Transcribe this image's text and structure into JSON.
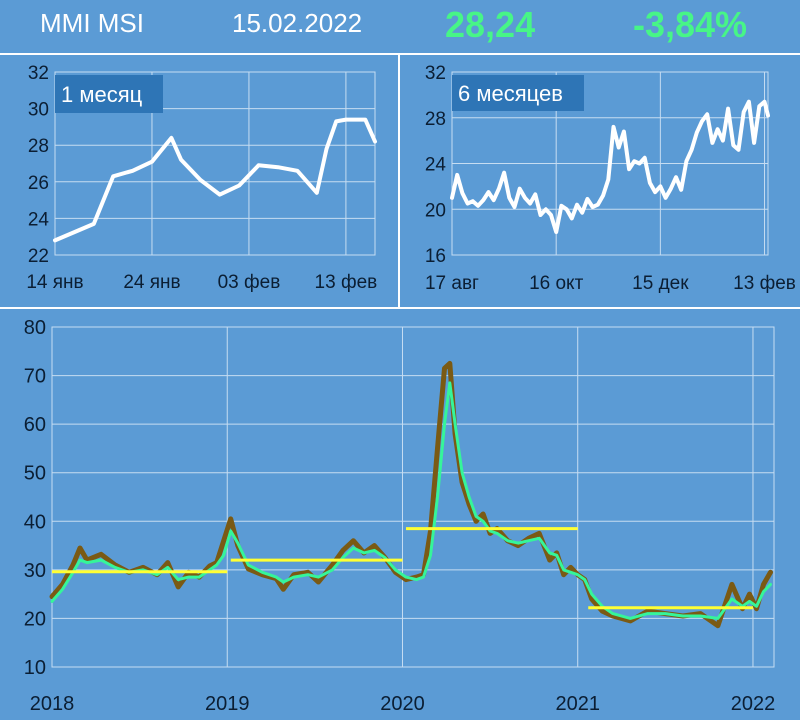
{
  "header": {
    "index_name": "MMI MSI",
    "date": "15.02.2022",
    "value": "28,24",
    "change": "-3,84%",
    "value_color": "#47f587",
    "text_color": "#ffffff"
  },
  "colors": {
    "background": "#5b9bd5",
    "grid": "#c6ddf2",
    "tick_text": "#0b1e33",
    "small_chart_line": "#ffffff",
    "badge_fill": "#2e75b6",
    "main_raw_line": "#7a5a14",
    "main_smooth_line": "#35f59a",
    "level_line": "#ffff33"
  },
  "chart_data": [
    {
      "type": "line",
      "label": "1 месяц",
      "ylim": [
        22,
        32
      ],
      "yticks": [
        "22",
        "24",
        "26",
        "28",
        "30",
        "32"
      ],
      "xticks": [
        "14 янв",
        "24 янв",
        "03 фев",
        "13 фев"
      ],
      "xlim": [
        0,
        33
      ],
      "xtick_positions": [
        0,
        10,
        20,
        30
      ],
      "x": [
        0,
        4,
        6,
        8,
        10,
        12,
        13,
        15,
        17,
        19,
        21,
        23,
        25,
        27,
        28,
        29,
        30,
        32,
        33
      ],
      "values": [
        22.8,
        23.7,
        26.3,
        26.6,
        27.1,
        28.4,
        27.2,
        26.1,
        25.3,
        25.8,
        26.9,
        26.8,
        26.6,
        25.4,
        27.8,
        29.3,
        29.4,
        29.4,
        28.2
      ]
    },
    {
      "type": "line",
      "label": "6 месяцев",
      "ylim": [
        16,
        32
      ],
      "yticks": [
        "16",
        "20",
        "24",
        "28",
        "32"
      ],
      "xticks": [
        "17 авг",
        "16 окт",
        "15 дек",
        "13 фев"
      ],
      "xlim": [
        0,
        182
      ],
      "xtick_positions": [
        0,
        60,
        120,
        180
      ],
      "x": [
        0,
        3,
        6,
        9,
        12,
        15,
        18,
        21,
        24,
        27,
        30,
        33,
        36,
        39,
        42,
        45,
        48,
        51,
        54,
        57,
        60,
        63,
        66,
        69,
        72,
        75,
        78,
        81,
        84,
        87,
        90,
        93,
        96,
        99,
        102,
        105,
        108,
        111,
        114,
        117,
        120,
        123,
        126,
        129,
        132,
        135,
        138,
        141,
        144,
        147,
        150,
        153,
        156,
        159,
        162,
        165,
        168,
        171,
        174,
        177,
        180,
        182
      ],
      "values": [
        21.0,
        23.0,
        21.4,
        20.5,
        20.7,
        20.3,
        20.8,
        21.5,
        20.8,
        21.8,
        23.2,
        21.0,
        20.2,
        21.8,
        21.0,
        20.5,
        21.3,
        19.5,
        20.0,
        19.5,
        18.0,
        20.3,
        20.0,
        19.2,
        20.4,
        19.7,
        20.9,
        20.2,
        20.4,
        21.2,
        22.6,
        27.2,
        25.4,
        26.8,
        23.5,
        24.2,
        24.0,
        24.5,
        22.3,
        21.5,
        22.0,
        21.0,
        21.8,
        22.8,
        21.7,
        24.2,
        25.2,
        26.7,
        27.7,
        28.3,
        25.8,
        27.0,
        26.0,
        28.8,
        25.6,
        25.2,
        28.5,
        29.4,
        25.8,
        29.0,
        29.4,
        28.2
      ]
    },
    {
      "type": "line",
      "ylim": [
        10,
        80
      ],
      "yticks": [
        "10",
        "20",
        "30",
        "40",
        "50",
        "60",
        "70",
        "80"
      ],
      "xticks": [
        "2018",
        "2019",
        "2020",
        "2021",
        "2022"
      ],
      "xlim": [
        2018,
        2022.12
      ],
      "xtick_positions": [
        2018,
        2019,
        2020,
        2021,
        2022
      ],
      "series": [
        {
          "x": [
            2018.0,
            2018.06,
            2018.12,
            2018.16,
            2018.2,
            2018.28,
            2018.36,
            2018.44,
            2018.52,
            2018.6,
            2018.66,
            2018.72,
            2018.78,
            2018.84,
            2018.9,
            2018.94,
            2018.98,
            2019.02,
            2019.06,
            2019.12,
            2019.2,
            2019.28,
            2019.32,
            2019.38,
            2019.46,
            2019.52,
            2019.6,
            2019.66,
            2019.72,
            2019.78,
            2019.84,
            2019.9,
            2019.96,
            2020.02,
            2020.08,
            2020.12,
            2020.16,
            2020.2,
            2020.24,
            2020.27,
            2020.3,
            2020.34,
            2020.38,
            2020.42,
            2020.46,
            2020.5,
            2020.54,
            2020.6,
            2020.66,
            2020.72,
            2020.78,
            2020.84,
            2020.88,
            2020.92,
            2020.96,
            2021.0,
            2021.04,
            2021.08,
            2021.14,
            2021.2,
            2021.3,
            2021.4,
            2021.5,
            2021.6,
            2021.7,
            2021.8,
            2021.88,
            2021.94,
            2021.98,
            2022.02,
            2022.06,
            2022.1
          ],
          "values": [
            24.5,
            27.0,
            31.0,
            34.5,
            32.0,
            33.2,
            31.0,
            29.5,
            30.5,
            29.0,
            31.5,
            26.5,
            29.5,
            28.5,
            30.8,
            31.5,
            36.0,
            40.5,
            35.0,
            30.2,
            29.0,
            28.2,
            26.0,
            29.0,
            29.5,
            27.5,
            31.0,
            34.0,
            36.0,
            33.5,
            35.0,
            32.5,
            29.5,
            28.0,
            28.5,
            29.0,
            38.0,
            55.0,
            71.5,
            72.5,
            58.0,
            48.0,
            43.5,
            40.0,
            41.5,
            37.5,
            38.5,
            36.0,
            35.0,
            36.5,
            37.5,
            32.0,
            33.5,
            29.0,
            30.5,
            29.0,
            28.0,
            24.0,
            21.5,
            20.5,
            19.5,
            21.5,
            21.0,
            20.5,
            21.0,
            18.5,
            27.0,
            22.0,
            25.0,
            22.0,
            27.0,
            29.5
          ],
          "color": "#7a5a14"
        },
        {
          "x": [
            2018.0,
            2018.06,
            2018.12,
            2018.16,
            2018.2,
            2018.28,
            2018.36,
            2018.44,
            2018.52,
            2018.6,
            2018.66,
            2018.72,
            2018.78,
            2018.84,
            2018.9,
            2018.94,
            2018.98,
            2019.02,
            2019.06,
            2019.12,
            2019.2,
            2019.28,
            2019.32,
            2019.38,
            2019.46,
            2019.52,
            2019.6,
            2019.66,
            2019.72,
            2019.78,
            2019.84,
            2019.9,
            2019.96,
            2020.02,
            2020.08,
            2020.12,
            2020.16,
            2020.2,
            2020.24,
            2020.27,
            2020.3,
            2020.34,
            2020.38,
            2020.42,
            2020.46,
            2020.5,
            2020.54,
            2020.6,
            2020.66,
            2020.72,
            2020.78,
            2020.84,
            2020.88,
            2020.92,
            2020.96,
            2021.0,
            2021.04,
            2021.08,
            2021.14,
            2021.2,
            2021.3,
            2021.4,
            2021.5,
            2021.6,
            2021.7,
            2021.8,
            2021.88,
            2021.94,
            2021.98,
            2022.02,
            2022.06,
            2022.1
          ],
          "values": [
            23.5,
            26.0,
            29.5,
            32.0,
            31.5,
            32.0,
            30.5,
            29.5,
            30.0,
            29.0,
            30.5,
            28.0,
            28.5,
            28.5,
            30.0,
            31.0,
            33.0,
            38.0,
            35.5,
            31.0,
            29.5,
            28.5,
            27.5,
            28.5,
            29.0,
            28.5,
            30.0,
            32.5,
            34.5,
            33.5,
            34.0,
            32.5,
            30.0,
            28.5,
            28.0,
            28.5,
            33.0,
            45.0,
            60.0,
            68.5,
            60.0,
            50.0,
            45.0,
            41.0,
            40.0,
            38.0,
            37.5,
            36.0,
            35.5,
            36.0,
            36.5,
            33.5,
            33.0,
            30.0,
            29.5,
            29.0,
            28.0,
            25.0,
            22.5,
            21.0,
            20.0,
            21.0,
            21.0,
            20.5,
            20.5,
            20.0,
            24.0,
            22.5,
            23.5,
            22.5,
            25.5,
            27.0
          ],
          "color": "#35f59a"
        }
      ],
      "levels": [
        {
          "from": 2018.0,
          "to": 2019.0,
          "value": 29.6
        },
        {
          "from": 2019.02,
          "to": 2020.0,
          "value": 32.0
        },
        {
          "from": 2020.02,
          "to": 2021.0,
          "value": 38.5
        },
        {
          "from": 2021.06,
          "to": 2022.0,
          "value": 22.2
        }
      ]
    }
  ]
}
